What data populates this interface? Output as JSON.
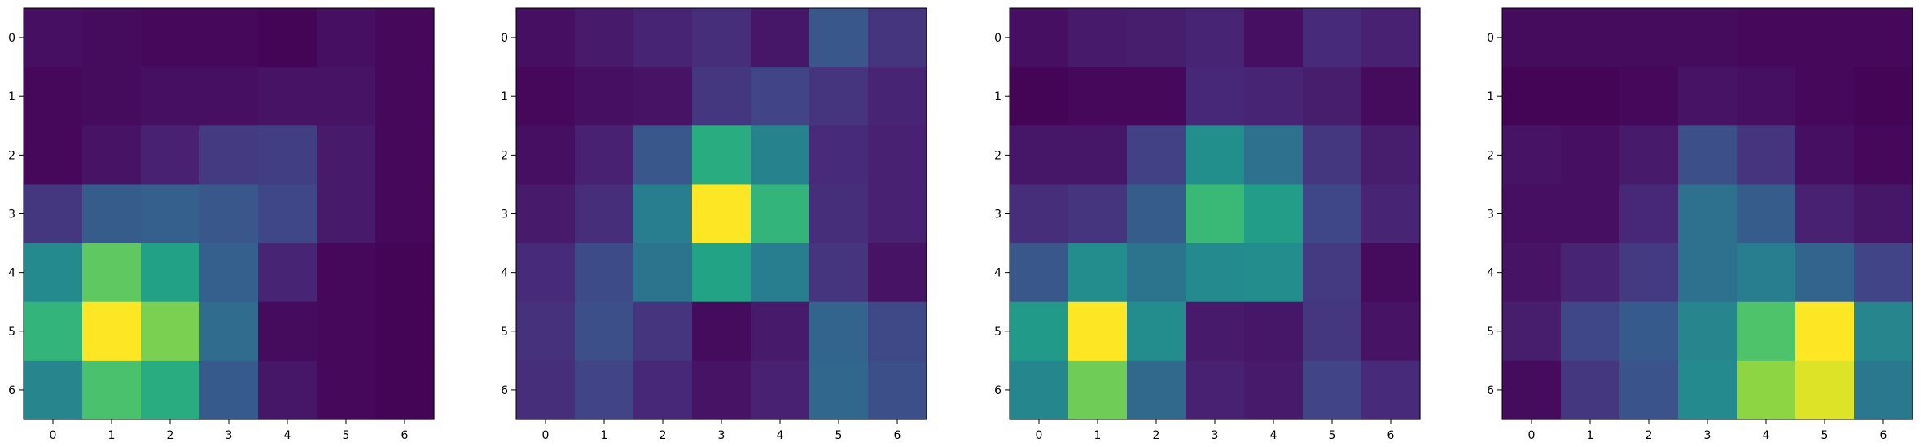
{
  "figure": {
    "colormap": "viridis",
    "panel_count": 4,
    "frame_color": "#000000",
    "background": "#ffffff"
  },
  "chart_data": [
    {
      "type": "heatmap",
      "title": "",
      "xlabel": "",
      "ylabel": "",
      "x_ticks": [
        "0",
        "1",
        "2",
        "3",
        "4",
        "5",
        "6"
      ],
      "y_ticks": [
        "0",
        "1",
        "2",
        "3",
        "4",
        "5",
        "6"
      ],
      "value_range": [
        0,
        1
      ],
      "grid": false,
      "values": [
        [
          0.04,
          0.03,
          0.02,
          0.02,
          0.01,
          0.04,
          0.02
        ],
        [
          0.02,
          0.03,
          0.04,
          0.04,
          0.05,
          0.05,
          0.02
        ],
        [
          0.02,
          0.05,
          0.09,
          0.17,
          0.18,
          0.07,
          0.02
        ],
        [
          0.16,
          0.29,
          0.3,
          0.27,
          0.21,
          0.07,
          0.02
        ],
        [
          0.47,
          0.75,
          0.57,
          0.3,
          0.1,
          0.02,
          0.01
        ],
        [
          0.65,
          1.0,
          0.8,
          0.35,
          0.03,
          0.02,
          0.01
        ],
        [
          0.45,
          0.71,
          0.62,
          0.28,
          0.06,
          0.02,
          0.01
        ]
      ]
    },
    {
      "type": "heatmap",
      "title": "",
      "xlabel": "",
      "ylabel": "",
      "x_ticks": [
        "0",
        "1",
        "2",
        "3",
        "4",
        "5",
        "6"
      ],
      "y_ticks": [
        "0",
        "1",
        "2",
        "3",
        "4",
        "5",
        "6"
      ],
      "value_range": [
        0,
        1
      ],
      "grid": false,
      "values": [
        [
          0.04,
          0.07,
          0.1,
          0.13,
          0.06,
          0.27,
          0.15
        ],
        [
          0.02,
          0.04,
          0.05,
          0.16,
          0.2,
          0.15,
          0.1
        ],
        [
          0.04,
          0.09,
          0.27,
          0.62,
          0.44,
          0.12,
          0.09
        ],
        [
          0.07,
          0.13,
          0.42,
          1.0,
          0.65,
          0.13,
          0.09
        ],
        [
          0.12,
          0.23,
          0.38,
          0.58,
          0.42,
          0.15,
          0.05
        ],
        [
          0.14,
          0.24,
          0.15,
          0.03,
          0.07,
          0.32,
          0.22
        ],
        [
          0.13,
          0.2,
          0.11,
          0.05,
          0.09,
          0.33,
          0.24
        ]
      ]
    },
    {
      "type": "heatmap",
      "title": "",
      "xlabel": "",
      "ylabel": "",
      "x_ticks": [
        "0",
        "1",
        "2",
        "3",
        "4",
        "5",
        "6"
      ],
      "y_ticks": [
        "0",
        "1",
        "2",
        "3",
        "4",
        "5",
        "6"
      ],
      "value_range": [
        0,
        1
      ],
      "grid": false,
      "values": [
        [
          0.04,
          0.07,
          0.08,
          0.1,
          0.04,
          0.12,
          0.09
        ],
        [
          0.01,
          0.02,
          0.02,
          0.11,
          0.1,
          0.08,
          0.03
        ],
        [
          0.06,
          0.06,
          0.19,
          0.49,
          0.37,
          0.16,
          0.08
        ],
        [
          0.13,
          0.15,
          0.29,
          0.67,
          0.55,
          0.21,
          0.1
        ],
        [
          0.27,
          0.48,
          0.38,
          0.47,
          0.48,
          0.17,
          0.03
        ],
        [
          0.54,
          1.0,
          0.48,
          0.07,
          0.06,
          0.16,
          0.05
        ],
        [
          0.46,
          0.78,
          0.34,
          0.09,
          0.07,
          0.2,
          0.12
        ]
      ]
    },
    {
      "type": "heatmap",
      "title": "",
      "xlabel": "",
      "ylabel": "",
      "x_ticks": [
        "0",
        "1",
        "2",
        "3",
        "4",
        "5",
        "6"
      ],
      "y_ticks": [
        "0",
        "1",
        "2",
        "3",
        "4",
        "5",
        "6"
      ],
      "value_range": [
        0,
        1
      ],
      "grid": false,
      "values": [
        [
          0.03,
          0.03,
          0.03,
          0.03,
          0.02,
          0.02,
          0.02
        ],
        [
          0.01,
          0.01,
          0.02,
          0.05,
          0.04,
          0.02,
          0.01
        ],
        [
          0.05,
          0.04,
          0.07,
          0.24,
          0.15,
          0.04,
          0.02
        ],
        [
          0.04,
          0.04,
          0.11,
          0.37,
          0.29,
          0.09,
          0.06
        ],
        [
          0.05,
          0.1,
          0.17,
          0.37,
          0.42,
          0.32,
          0.2
        ],
        [
          0.08,
          0.21,
          0.28,
          0.45,
          0.72,
          1.0,
          0.45
        ],
        [
          0.03,
          0.16,
          0.26,
          0.47,
          0.83,
          0.95,
          0.4
        ]
      ]
    }
  ]
}
